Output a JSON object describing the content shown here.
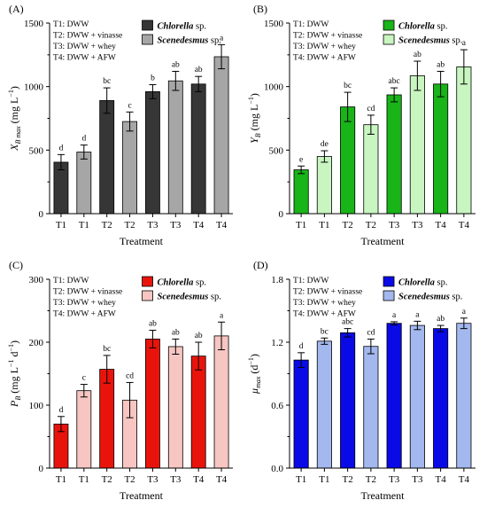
{
  "chart_data": [
    {
      "type": "bar",
      "panel_label": "(A)",
      "categories": [
        "T1",
        "T1",
        "T2",
        "T2",
        "T3",
        "T3",
        "T4",
        "T4"
      ],
      "values": [
        405,
        485,
        890,
        725,
        960,
        1045,
        1020,
        1235
      ],
      "errors": [
        60,
        55,
        100,
        75,
        55,
        75,
        60,
        95
      ],
      "sig_letters": [
        "d",
        "d",
        "bc",
        "c",
        "b",
        "ab",
        "ab",
        "a"
      ],
      "species": [
        "Chlorella sp.",
        "Scenedesmus sp.",
        "Chlorella sp.",
        "Scenedesmus sp.",
        "Chlorella sp.",
        "Scenedesmus sp.",
        "Chlorella sp.",
        "Scenedesmus sp."
      ],
      "series_colors": {
        "Chlorella sp.": "#363636",
        "Scenedesmus sp.": "#a6a6a6"
      },
      "legend": [
        {
          "name": "Chlorella sp.",
          "italic": "Chlorella",
          "suffix": " sp.",
          "color": "#363636"
        },
        {
          "name": "Scenedesmus sp.",
          "italic": "Scenedesmus",
          "suffix": " sp.",
          "color": "#a6a6a6"
        }
      ],
      "treatments": [
        "T1: DWW",
        "T2: DWW + vinasse",
        "T3: DWW + whey",
        "T4: DWW + AFW"
      ],
      "xlabel": "Treatment",
      "ylabel": {
        "main": "X",
        "sub": "B max",
        "unit": " (mg L",
        "sup": "−1",
        "close": ")"
      },
      "ylim": [
        0,
        1500
      ],
      "yticks": [
        0,
        500,
        1000,
        1500
      ],
      "ytick_labels": [
        "0",
        "500",
        "1000",
        "1500"
      ]
    },
    {
      "type": "bar",
      "panel_label": "(B)",
      "categories": [
        "T1",
        "T1",
        "T2",
        "T2",
        "T3",
        "T3",
        "T4",
        "T4"
      ],
      "values": [
        345,
        450,
        840,
        700,
        935,
        1085,
        1020,
        1155
      ],
      "errors": [
        30,
        45,
        115,
        75,
        55,
        115,
        100,
        135
      ],
      "sig_letters": [
        "e",
        "de",
        "bc",
        "cd",
        "abc",
        "ab",
        "ab",
        "a"
      ],
      "species": [
        "Chlorella sp.",
        "Scenedesmus sp.",
        "Chlorella sp.",
        "Scenedesmus sp.",
        "Chlorella sp.",
        "Scenedesmus sp.",
        "Chlorella sp.",
        "Scenedesmus sp."
      ],
      "series_colors": {
        "Chlorella sp.": "#18b418",
        "Scenedesmus sp.": "#c8f5c0"
      },
      "legend": [
        {
          "name": "Chlorella sp.",
          "italic": "Chlorella",
          "suffix": " sp.",
          "color": "#18b418"
        },
        {
          "name": "Scenedesmus sp.",
          "italic": "Scenedesmus",
          "suffix": " sp.",
          "color": "#c8f5c0"
        }
      ],
      "treatments": [
        "T1: DWW",
        "T2: DWW + vinasse",
        "T3: DWW + whey",
        "T4: DWW + AFW"
      ],
      "xlabel": "Treatment",
      "ylabel": {
        "main": "Y",
        "sub": "B",
        "unit": " (mg L",
        "sup": "−1",
        "close": ")"
      },
      "ylim": [
        0,
        1500
      ],
      "yticks": [
        0,
        500,
        1000,
        1500
      ],
      "ytick_labels": [
        "0",
        "500",
        "1000",
        "1500"
      ]
    },
    {
      "type": "bar",
      "panel_label": "(C)",
      "categories": [
        "T1",
        "T1",
        "T2",
        "T2",
        "T3",
        "T3",
        "T4",
        "T4"
      ],
      "values": [
        70,
        123,
        157,
        108,
        205,
        193,
        178,
        210
      ],
      "errors": [
        12,
        10,
        22,
        28,
        14,
        12,
        22,
        22
      ],
      "sig_letters": [
        "d",
        "c",
        "bc",
        "cd",
        "ab",
        "ab",
        "ab",
        "a"
      ],
      "species": [
        "Chlorella sp.",
        "Scenedesmus sp.",
        "Chlorella sp.",
        "Scenedesmus sp.",
        "Chlorella sp.",
        "Scenedesmus sp.",
        "Chlorella sp.",
        "Scenedesmus sp."
      ],
      "series_colors": {
        "Chlorella sp.": "#e8140c",
        "Scenedesmus sp.": "#f7c6c2"
      },
      "legend": [
        {
          "name": "Chlorella sp.",
          "italic": "Chlorella",
          "suffix": " sp.",
          "color": "#e8140c"
        },
        {
          "name": "Scenedesmus sp.",
          "italic": "Scenedesmus",
          "suffix": " sp.",
          "color": "#f7c6c2"
        }
      ],
      "treatments": [
        "T1: DWW",
        "T2: DWW + vinasse",
        "T3: DWW + whey",
        "T4: DWW + AFW"
      ],
      "xlabel": "Treatment",
      "ylabel": {
        "main": "P",
        "sub": "B",
        "unit": " (mg L",
        "sup": "−1",
        "mid": " d",
        "sup2": "−1",
        "close": ")"
      },
      "ylim": [
        0,
        300
      ],
      "yticks": [
        0,
        100,
        200,
        300
      ],
      "ytick_labels": [
        "0",
        "100",
        "200",
        "300"
      ]
    },
    {
      "type": "bar",
      "panel_label": "(D)",
      "categories": [
        "T1",
        "T1",
        "T2",
        "T2",
        "T3",
        "T3",
        "T4",
        "T4"
      ],
      "values": [
        1.03,
        1.21,
        1.29,
        1.16,
        1.38,
        1.36,
        1.33,
        1.38
      ],
      "errors": [
        0.07,
        0.03,
        0.04,
        0.07,
        0.015,
        0.04,
        0.03,
        0.05
      ],
      "sig_letters": [
        "d",
        "bc",
        "abc",
        "cd",
        "a",
        "a",
        "ab",
        "a"
      ],
      "species": [
        "Chlorella sp.",
        "Scenedesmus sp.",
        "Chlorella sp.",
        "Scenedesmus sp.",
        "Chlorella sp.",
        "Scenedesmus sp.",
        "Chlorella sp.",
        "Scenedesmus sp."
      ],
      "series_colors": {
        "Chlorella sp.": "#0a0ae6",
        "Scenedesmus sp.": "#a3b8ee"
      },
      "legend": [
        {
          "name": "Chlorella sp.",
          "italic": "Chlorella",
          "suffix": " sp.",
          "color": "#0a0ae6"
        },
        {
          "name": "Scenedesmus sp.",
          "italic": "Scenedesmus",
          "suffix": " sp.",
          "color": "#a3b8ee"
        }
      ],
      "treatments": [
        "T1: DWW",
        "T2: DWW + vinasse",
        "T3: DWW + whey",
        "T4: DWW + AFW"
      ],
      "xlabel": "Treatment",
      "ylabel": {
        "main": "μ",
        "sub": "max",
        "unit": " (d",
        "sup": "−1",
        "close": ")"
      },
      "ylim": [
        0,
        1.8
      ],
      "yticks": [
        0,
        0.6,
        1.2,
        1.8
      ],
      "ytick_labels": [
        "0.0",
        "0.6",
        "1.2",
        "1.8"
      ]
    }
  ]
}
